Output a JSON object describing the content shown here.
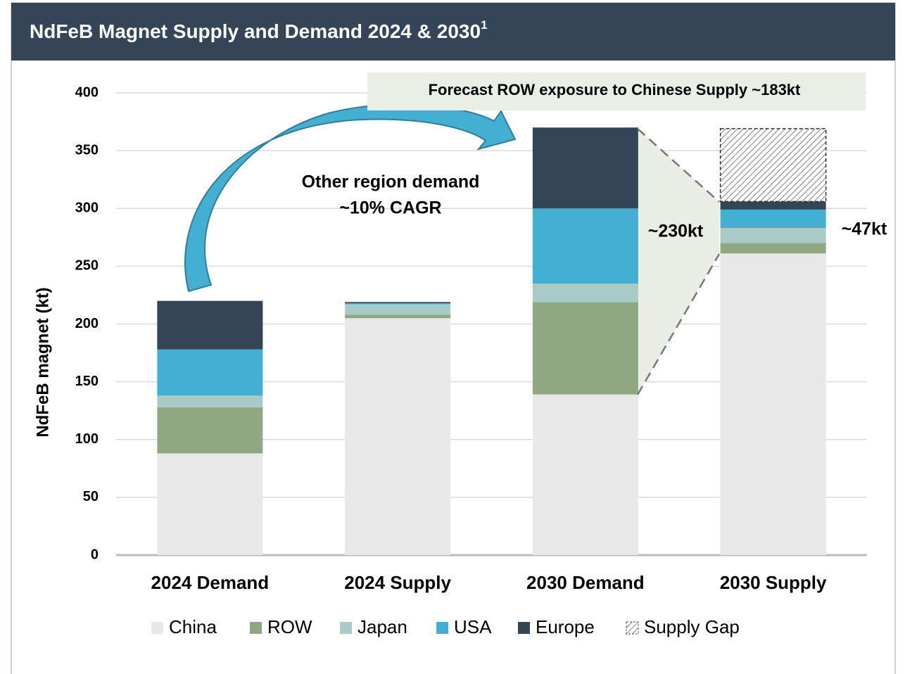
{
  "chart_data": {
    "type": "stacked_bar",
    "title": "NdFeB Magnet Supply and Demand 2024 & 2030",
    "title_note": "1",
    "y_label": "NdFeB magnet (kt)",
    "categories": [
      "2024 Demand",
      "2024 Supply",
      "2030 Demand",
      "2030 Supply"
    ],
    "series": [
      {
        "name": "China",
        "color": "#e8e8e8",
        "values": [
          88,
          205,
          139,
          261
        ]
      },
      {
        "name": "ROW",
        "color": "#8fa882",
        "values": [
          40,
          3,
          80,
          9
        ]
      },
      {
        "name": "Japan",
        "color": "#a9cbc8",
        "values": [
          10,
          9,
          16,
          13
        ]
      },
      {
        "name": "USA",
        "color": "#42afd3",
        "values": [
          40,
          1,
          65,
          16
        ]
      },
      {
        "name": "Europe",
        "color": "#344557",
        "values": [
          42,
          1,
          70,
          7
        ]
      },
      {
        "name": "Supply Gap",
        "color": "hatch",
        "values": [
          null,
          null,
          null,
          63
        ]
      }
    ],
    "ylim": [
      0,
      400
    ],
    "yticks": [
      0,
      50,
      100,
      150,
      200,
      250,
      300,
      350,
      400
    ],
    "grid": true,
    "annotations": {
      "exposure": "Forecast ROW exposure to Chinese Supply ~183kt",
      "growth_line1": "Other region demand",
      "growth_line2": "~10% CAGR",
      "demand_other": "~230kt",
      "supply_other": "~47kt"
    }
  }
}
